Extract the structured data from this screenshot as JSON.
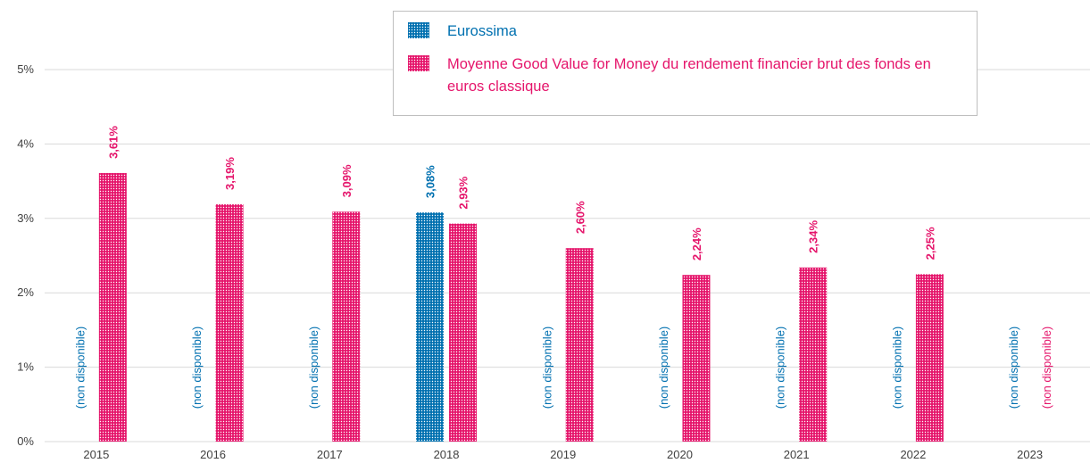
{
  "chart_data": {
    "type": "bar",
    "categories": [
      "2015",
      "2016",
      "2017",
      "2018",
      "2019",
      "2020",
      "2021",
      "2022",
      "2023"
    ],
    "series": [
      {
        "name": "Eurossima",
        "color": "#0070b0",
        "values": [
          null,
          null,
          null,
          3.08,
          null,
          null,
          null,
          null,
          null
        ],
        "value_labels": [
          null,
          null,
          null,
          "3,08%",
          null,
          null,
          null,
          null,
          null
        ]
      },
      {
        "name": "Moyenne Good Value for Money du rendement financier brut des fonds en euros classique",
        "color": "#e5156b",
        "values": [
          3.61,
          3.19,
          3.09,
          2.93,
          2.6,
          2.24,
          2.34,
          2.25,
          null
        ],
        "value_labels": [
          "3,61%",
          "3,19%",
          "3,09%",
          "2,93%",
          "2,60%",
          "2,24%",
          "2,34%",
          "2,25%",
          null
        ]
      }
    ],
    "missing_label": "(non disponible)",
    "ylim": [
      0,
      5
    ],
    "yticks": [
      {
        "value": 0,
        "label": "0%"
      },
      {
        "value": 1,
        "label": "1%"
      },
      {
        "value": 2,
        "label": "2%"
      },
      {
        "value": 3,
        "label": "3%"
      },
      {
        "value": 4,
        "label": "4%"
      },
      {
        "value": 5,
        "label": "5%"
      }
    ],
    "grid": true,
    "legend": "top"
  }
}
